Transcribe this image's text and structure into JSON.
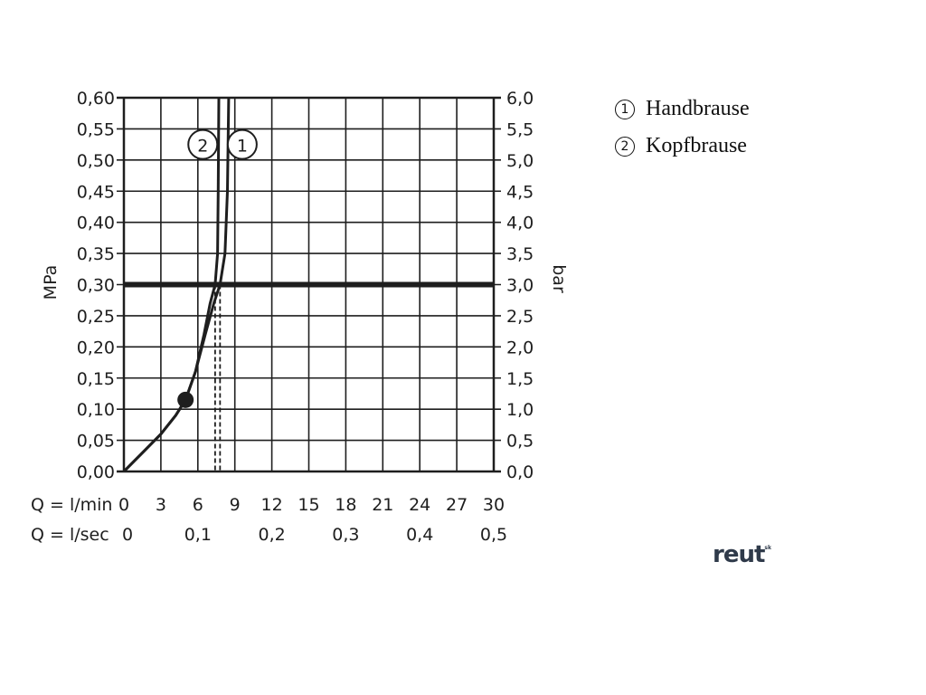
{
  "chart_data": {
    "type": "line",
    "ylabel_left": "MPa",
    "ylabel_right": "bar",
    "y_left_ticks": [
      "0,00",
      "0,05",
      "0,10",
      "0,15",
      "0,20",
      "0,25",
      "0,30",
      "0,35",
      "0,40",
      "0,45",
      "0,50",
      "0,55",
      "0,60"
    ],
    "y_right_ticks": [
      "0,0",
      "0,5",
      "1,0",
      "1,5",
      "2,0",
      "2,5",
      "3,0",
      "3,5",
      "4,0",
      "4,5",
      "5,0",
      "5,5",
      "6,0"
    ],
    "ylim": [
      0,
      0.6
    ],
    "xlim": [
      0,
      30
    ],
    "x_row1_label": "Q = l/min",
    "x_row1_ticks": [
      "0",
      "3",
      "6",
      "9",
      "12",
      "15",
      "18",
      "21",
      "24",
      "27",
      "30"
    ],
    "x_row2_label": "Q = l/sec",
    "x_row2_ticks": [
      "0",
      "0,1",
      "0,2",
      "0,3",
      "0,4",
      "0,5"
    ],
    "grid": true,
    "reference_line_y": 0.3,
    "series": [
      {
        "name": "2",
        "points": [
          [
            0,
            0
          ],
          [
            1.5,
            0.03
          ],
          [
            3,
            0.06
          ],
          [
            4.2,
            0.09
          ],
          [
            5.0,
            0.115
          ],
          [
            5.8,
            0.16
          ],
          [
            6.5,
            0.22
          ],
          [
            7.0,
            0.27
          ],
          [
            7.4,
            0.3
          ],
          [
            7.6,
            0.35
          ],
          [
            7.65,
            0.45
          ],
          [
            7.7,
            0.6
          ]
        ],
        "marker": [
          5.0,
          0.115
        ],
        "flow_at_reference": 7.4
      },
      {
        "name": "1",
        "points": [
          [
            0,
            0
          ],
          [
            1.5,
            0.03
          ],
          [
            3,
            0.06
          ],
          [
            4.2,
            0.09
          ],
          [
            5.0,
            0.115
          ],
          [
            5.8,
            0.16
          ],
          [
            6.6,
            0.22
          ],
          [
            7.3,
            0.27
          ],
          [
            7.8,
            0.3
          ],
          [
            8.2,
            0.35
          ],
          [
            8.4,
            0.45
          ],
          [
            8.5,
            0.6
          ]
        ],
        "flow_at_reference": 7.8
      }
    ],
    "callouts": [
      {
        "label": "2",
        "x": 6.4,
        "y": 0.525
      },
      {
        "label": "1",
        "x": 9.6,
        "y": 0.525
      }
    ]
  },
  "legend": [
    {
      "num": "1",
      "text": "Handbrause"
    },
    {
      "num": "2",
      "text": "Kopfbrause"
    }
  ],
  "logo": {
    "text": "reut",
    "sup": "sk"
  },
  "colors": {
    "ink": "#1e1e1e",
    "logo": "#2f3a4a"
  }
}
